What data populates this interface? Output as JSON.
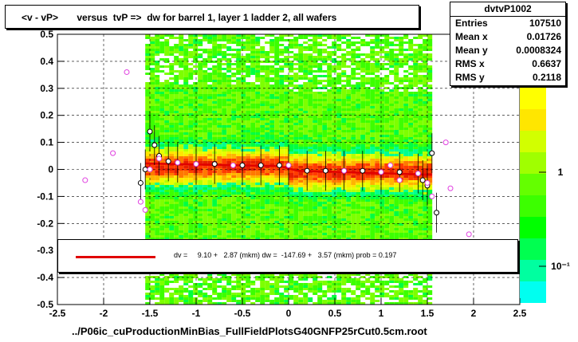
{
  "title": "<v - vP>       versus  tvP =>  dw for barrel 1, layer 1 ladder 2, all wafers",
  "stats": {
    "name": "dvtvP1002",
    "rows": [
      {
        "label": "Entries",
        "value": "107510"
      },
      {
        "label": "Mean x",
        "value": "0.01726"
      },
      {
        "label": "Mean y",
        "value": "0.0008324"
      },
      {
        "label": "RMS x",
        "value": "0.6637"
      },
      {
        "label": "RMS y",
        "value": "0.2118"
      }
    ]
  },
  "legend": {
    "text": "dv =     9.10 +   2.87 (mkm) dw =  -147.69 +   3.57 (mkm) prob = 0.197",
    "line_color": "#e00000"
  },
  "chart_data": {
    "type": "heatmap",
    "title": "<v - vP>       versus  tvP =>  dw for barrel 1, layer 1 ladder 2, all wafers",
    "xlabel": "../P06ic_cuProductionMinBias_FullFieldPlotsG40GNFP25rCut0.5cm.root",
    "ylabel": "",
    "xlim": [
      -2.5,
      2.5
    ],
    "ylim": [
      -0.5,
      0.5
    ],
    "x_ticks": [
      "-2.5",
      "-2",
      "-1.5",
      "-1",
      "-0.5",
      "0",
      "0.5",
      "1",
      "1.5",
      "2",
      "2.5"
    ],
    "y_ticks": [
      "-0.5",
      "-0.4",
      "-0.3",
      "-0.2",
      "-0.1",
      "0",
      "0.1",
      "0.2",
      "0.3",
      "0.4",
      "0.5"
    ],
    "grid": true,
    "colorbar": {
      "scale": "log",
      "labels": [
        "1",
        "10⁻¹"
      ]
    },
    "heatmap_extent": {
      "x": [
        -1.55,
        1.55
      ],
      "y": [
        -0.5,
        0.5
      ]
    },
    "fit_line": {
      "name": "fit",
      "color": "#e00000",
      "x": [
        -1.55,
        -0.1,
        0.1,
        1.55
      ],
      "y": [
        0.022,
        0.012,
        -0.005,
        -0.02
      ]
    },
    "series": [
      {
        "name": "profile-black",
        "color": "#000000",
        "x": [
          -1.6,
          -1.55,
          -1.5,
          -1.45,
          -1.4,
          -1.3,
          -1.2,
          -1.0,
          -0.8,
          -0.5,
          -0.3,
          -0.1,
          0.0,
          0.2,
          0.4,
          0.6,
          0.8,
          1.0,
          1.2,
          1.4,
          1.45,
          1.5,
          1.55,
          1.6
        ],
        "y": [
          -0.05,
          0.0,
          0.14,
          0.09,
          0.05,
          0.03,
          0.025,
          0.02,
          0.02,
          0.015,
          0.015,
          0.015,
          0.015,
          -0.005,
          -0.005,
          -0.005,
          -0.005,
          -0.01,
          -0.01,
          -0.015,
          -0.04,
          -0.06,
          0.06,
          -0.16
        ]
      },
      {
        "name": "profile-magenta",
        "color": "#e040e0",
        "x": [
          -2.2,
          -1.9,
          -1.75,
          -1.6,
          -1.55,
          -1.5,
          -1.4,
          -1.2,
          -1.0,
          -0.6,
          0.0,
          0.6,
          1.0,
          1.1,
          1.2,
          1.4,
          1.5,
          1.55,
          1.7,
          1.75,
          1.95
        ],
        "y": [
          -0.04,
          0.06,
          0.36,
          -0.12,
          -0.15,
          0.0,
          0.04,
          0.025,
          0.02,
          0.015,
          0.015,
          -0.005,
          -0.01,
          0.015,
          -0.04,
          -0.015,
          -0.05,
          -0.1,
          0.1,
          -0.07,
          -0.24
        ]
      }
    ]
  }
}
